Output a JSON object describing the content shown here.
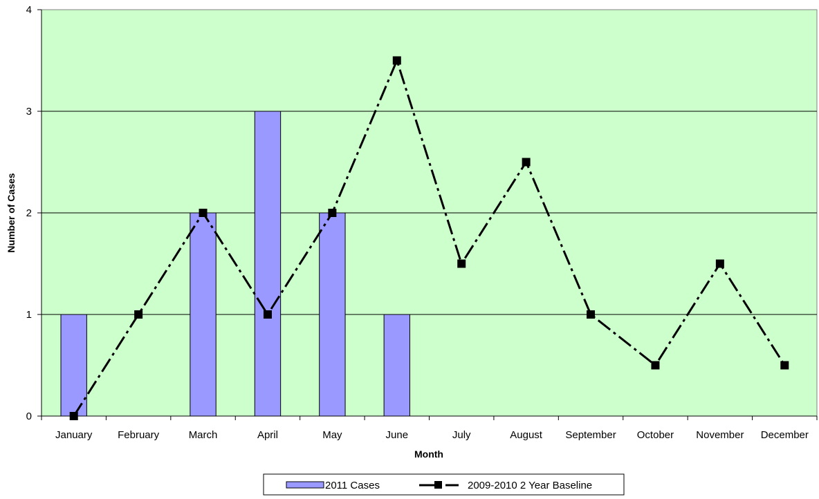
{
  "chart_data": {
    "type": "bar",
    "categories": [
      "January",
      "February",
      "March",
      "April",
      "May",
      "June",
      "July",
      "August",
      "September",
      "October",
      "November",
      "December"
    ],
    "series": [
      {
        "name": "2011 Cases",
        "kind": "bar",
        "values": [
          1,
          0,
          2,
          3,
          2,
          1,
          null,
          null,
          null,
          null,
          null,
          null
        ],
        "color": "#9999ff"
      },
      {
        "name": "2009-2010 2 Year Baseline",
        "kind": "line",
        "values": [
          0,
          1,
          2,
          1,
          2,
          3.5,
          1.5,
          2.5,
          1,
          0.5,
          1.5,
          0.5
        ],
        "color": "#000000",
        "line_style": "dash-dot",
        "marker": "square"
      }
    ],
    "xlabel": "Month",
    "ylabel": "Number of Cases",
    "ylim": [
      0,
      4
    ],
    "yticks": [
      "0",
      "1",
      "2",
      "3",
      "4"
    ],
    "grid": true,
    "plot_background": "#ccffcc",
    "legend_position": "bottom"
  }
}
